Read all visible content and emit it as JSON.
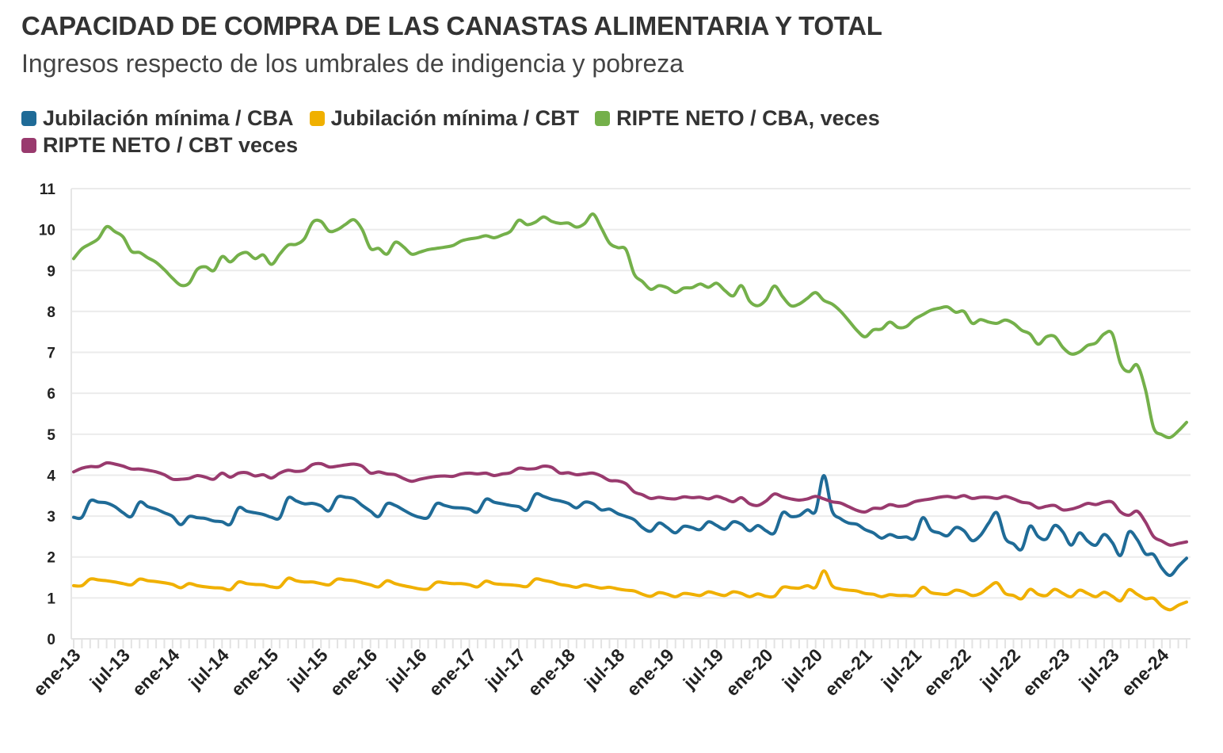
{
  "chart_data": {
    "type": "line",
    "title": "CAPACIDAD DE COMPRA DE LAS CANASTAS ALIMENTARIA Y TOTAL",
    "subtitle": "Ingresos respecto de los umbrales de indigencia y pobreza",
    "xlabel": "",
    "ylabel": "",
    "ylim": [
      0,
      11
    ],
    "y_ticks": [
      "0",
      "1",
      "2",
      "3",
      "4",
      "5",
      "6",
      "7",
      "8",
      "9",
      "10",
      "11"
    ],
    "x_frequency": "monthly",
    "x_start": "ene-13",
    "x_end": "abr-24",
    "x_tick_labels": [
      "ene-13",
      "jul-13",
      "ene-14",
      "jul-14",
      "ene-15",
      "jul-15",
      "ene-16",
      "jul-16",
      "ene-17",
      "jul-17",
      "ene-18",
      "jul-18",
      "ene-19",
      "jul-19",
      "ene-20",
      "jul-20",
      "ene-21",
      "jul-21",
      "ene-22",
      "jul-22",
      "ene-23",
      "jul-23",
      "ene-24"
    ],
    "grid": true,
    "legend_position": "top-left",
    "series": [
      {
        "name": "Jubilación mínima / CBA",
        "color": "#1f6b97",
        "values": [
          2.97,
          2.97,
          3.37,
          3.34,
          3.32,
          3.23,
          3.08,
          2.99,
          3.34,
          3.23,
          3.17,
          3.08,
          2.99,
          2.79,
          2.99,
          2.96,
          2.94,
          2.88,
          2.86,
          2.8,
          3.2,
          3.12,
          3.08,
          3.04,
          2.97,
          2.96,
          3.44,
          3.37,
          3.3,
          3.31,
          3.25,
          3.13,
          3.46,
          3.46,
          3.42,
          3.26,
          3.12,
          2.99,
          3.3,
          3.26,
          3.15,
          3.04,
          2.97,
          2.97,
          3.3,
          3.26,
          3.21,
          3.2,
          3.17,
          3.1,
          3.41,
          3.34,
          3.3,
          3.26,
          3.23,
          3.15,
          3.53,
          3.48,
          3.41,
          3.37,
          3.31,
          3.2,
          3.34,
          3.3,
          3.15,
          3.17,
          3.06,
          2.99,
          2.91,
          2.72,
          2.63,
          2.83,
          2.72,
          2.59,
          2.75,
          2.72,
          2.67,
          2.86,
          2.77,
          2.68,
          2.86,
          2.8,
          2.64,
          2.77,
          2.64,
          2.59,
          3.08,
          2.99,
          3.01,
          3.15,
          3.12,
          3.99,
          3.13,
          2.94,
          2.83,
          2.8,
          2.67,
          2.59,
          2.46,
          2.55,
          2.48,
          2.49,
          2.46,
          2.96,
          2.66,
          2.59,
          2.52,
          2.72,
          2.64,
          2.4,
          2.53,
          2.83,
          3.08,
          2.46,
          2.32,
          2.19,
          2.75,
          2.5,
          2.44,
          2.77,
          2.61,
          2.29,
          2.59,
          2.39,
          2.29,
          2.55,
          2.35,
          2.04,
          2.61,
          2.43,
          2.08,
          2.06,
          1.73,
          1.55,
          1.77,
          1.97
        ]
      },
      {
        "name": "Jubilación mínima / CBT",
        "color": "#f0b000",
        "values": [
          1.3,
          1.3,
          1.46,
          1.44,
          1.42,
          1.39,
          1.35,
          1.32,
          1.46,
          1.42,
          1.4,
          1.37,
          1.33,
          1.25,
          1.35,
          1.3,
          1.27,
          1.25,
          1.24,
          1.2,
          1.39,
          1.35,
          1.33,
          1.32,
          1.27,
          1.27,
          1.48,
          1.42,
          1.39,
          1.39,
          1.35,
          1.32,
          1.46,
          1.44,
          1.42,
          1.37,
          1.32,
          1.27,
          1.42,
          1.35,
          1.3,
          1.26,
          1.22,
          1.22,
          1.38,
          1.37,
          1.35,
          1.35,
          1.32,
          1.27,
          1.41,
          1.35,
          1.33,
          1.32,
          1.3,
          1.28,
          1.46,
          1.43,
          1.39,
          1.33,
          1.3,
          1.26,
          1.32,
          1.28,
          1.24,
          1.26,
          1.22,
          1.19,
          1.17,
          1.09,
          1.04,
          1.13,
          1.09,
          1.03,
          1.11,
          1.09,
          1.06,
          1.15,
          1.1,
          1.06,
          1.15,
          1.11,
          1.03,
          1.1,
          1.04,
          1.04,
          1.26,
          1.25,
          1.24,
          1.3,
          1.26,
          1.66,
          1.3,
          1.22,
          1.19,
          1.17,
          1.11,
          1.09,
          1.03,
          1.08,
          1.06,
          1.06,
          1.06,
          1.26,
          1.13,
          1.1,
          1.09,
          1.19,
          1.15,
          1.06,
          1.11,
          1.26,
          1.37,
          1.11,
          1.06,
          0.98,
          1.21,
          1.09,
          1.06,
          1.21,
          1.11,
          1.03,
          1.19,
          1.11,
          1.03,
          1.14,
          1.04,
          0.93,
          1.2,
          1.09,
          0.98,
          0.99,
          0.8,
          0.71,
          0.82,
          0.9
        ]
      },
      {
        "name": "RIPTE NETO / CBA, veces",
        "color": "#74b04a",
        "values": [
          9.29,
          9.53,
          9.65,
          9.78,
          10.07,
          9.95,
          9.82,
          9.47,
          9.44,
          9.31,
          9.2,
          9.02,
          8.81,
          8.64,
          8.69,
          9.03,
          9.09,
          9.0,
          9.34,
          9.21,
          9.38,
          9.44,
          9.29,
          9.38,
          9.15,
          9.4,
          9.62,
          9.64,
          9.78,
          10.18,
          10.2,
          9.96,
          10.0,
          10.13,
          10.24,
          10.0,
          9.54,
          9.54,
          9.4,
          9.69,
          9.58,
          9.4,
          9.45,
          9.51,
          9.54,
          9.57,
          9.61,
          9.72,
          9.77,
          9.8,
          9.85,
          9.8,
          9.87,
          9.96,
          10.23,
          10.12,
          10.18,
          10.31,
          10.2,
          10.15,
          10.16,
          10.06,
          10.15,
          10.38,
          10.04,
          9.67,
          9.56,
          9.51,
          8.91,
          8.73,
          8.54,
          8.63,
          8.58,
          8.46,
          8.57,
          8.58,
          8.67,
          8.59,
          8.69,
          8.51,
          8.38,
          8.63,
          8.25,
          8.14,
          8.29,
          8.62,
          8.36,
          8.14,
          8.18,
          8.32,
          8.46,
          8.27,
          8.18,
          8.01,
          7.78,
          7.54,
          7.38,
          7.55,
          7.57,
          7.74,
          7.61,
          7.63,
          7.81,
          7.92,
          8.03,
          8.08,
          8.11,
          7.98,
          8.0,
          7.71,
          7.8,
          7.74,
          7.71,
          7.79,
          7.71,
          7.54,
          7.45,
          7.2,
          7.38,
          7.39,
          7.12,
          6.96,
          7.01,
          7.17,
          7.23,
          7.45,
          7.45,
          6.72,
          6.53,
          6.69,
          6.1,
          5.16,
          4.99,
          4.92,
          5.08,
          5.29
        ]
      },
      {
        "name": "RIPTE NETO / CBT veces",
        "color": "#993a6e",
        "values": [
          4.08,
          4.17,
          4.21,
          4.21,
          4.3,
          4.27,
          4.22,
          4.15,
          4.15,
          4.12,
          4.08,
          4.01,
          3.9,
          3.9,
          3.92,
          3.99,
          3.95,
          3.9,
          4.05,
          3.95,
          4.05,
          4.06,
          3.98,
          4.01,
          3.93,
          4.05,
          4.12,
          4.09,
          4.12,
          4.26,
          4.28,
          4.2,
          4.22,
          4.25,
          4.27,
          4.22,
          4.05,
          4.08,
          4.03,
          4.01,
          3.92,
          3.85,
          3.9,
          3.94,
          3.97,
          3.98,
          3.97,
          4.03,
          4.05,
          4.03,
          4.05,
          3.99,
          4.03,
          4.06,
          4.17,
          4.15,
          4.16,
          4.22,
          4.19,
          4.05,
          4.06,
          4.01,
          4.03,
          4.05,
          3.98,
          3.87,
          3.86,
          3.79,
          3.59,
          3.52,
          3.43,
          3.46,
          3.43,
          3.42,
          3.47,
          3.45,
          3.46,
          3.42,
          3.48,
          3.42,
          3.35,
          3.45,
          3.3,
          3.26,
          3.37,
          3.54,
          3.47,
          3.42,
          3.39,
          3.42,
          3.48,
          3.42,
          3.35,
          3.32,
          3.23,
          3.14,
          3.1,
          3.19,
          3.19,
          3.28,
          3.24,
          3.26,
          3.35,
          3.39,
          3.42,
          3.46,
          3.48,
          3.45,
          3.5,
          3.43,
          3.46,
          3.46,
          3.43,
          3.48,
          3.42,
          3.34,
          3.31,
          3.2,
          3.24,
          3.26,
          3.15,
          3.17,
          3.23,
          3.31,
          3.28,
          3.34,
          3.34,
          3.1,
          3.02,
          3.12,
          2.86,
          2.5,
          2.39,
          2.29,
          2.33,
          2.37
        ]
      }
    ]
  }
}
